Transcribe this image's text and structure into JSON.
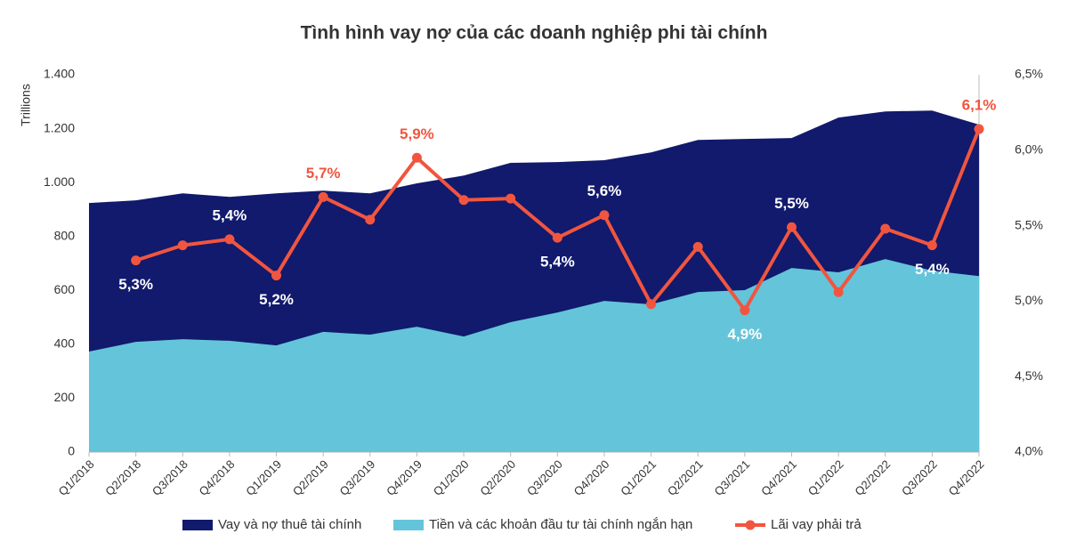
{
  "chart_data": {
    "type": "area_line",
    "title": "Tình hình vay nợ của các doanh nghiệp phi tài chính",
    "y_label": "Trillions",
    "categories": [
      "Q1/2018",
      "Q2/2018",
      "Q3/2018",
      "Q4/2018",
      "Q1/2019",
      "Q2/2019",
      "Q3/2019",
      "Q4/2019",
      "Q1/2020",
      "Q2/2020",
      "Q3/2020",
      "Q4/2020",
      "Q1/2021",
      "Q2/2021",
      "Q3/2021",
      "Q4/2021",
      "Q1/2022",
      "Q2/2022",
      "Q3/2022",
      "Q4/2022"
    ],
    "series": [
      {
        "name": "Vay và nợ thuê tài chính",
        "type": "area",
        "color": "#111a6c",
        "values": [
          924,
          934,
          960,
          947,
          960,
          970,
          960,
          997,
          1026,
          1073,
          1076,
          1083,
          1112,
          1158,
          1162,
          1165,
          1241,
          1264,
          1267,
          1215
        ]
      },
      {
        "name": "Tiền và các khoản đầu tư tài chính ngắn hạn",
        "type": "area",
        "color": "#64c4da",
        "values": [
          373,
          409,
          419,
          413,
          396,
          446,
          436,
          465,
          429,
          482,
          518,
          561,
          548,
          594,
          601,
          683,
          667,
          716,
          673,
          653
        ]
      },
      {
        "name": "Lãi vay phải trả",
        "type": "line",
        "axis": "y2",
        "color": "#f1553f",
        "values": [
          null,
          5.27,
          5.37,
          5.41,
          5.17,
          5.69,
          5.54,
          5.95,
          5.67,
          5.68,
          5.42,
          5.57,
          4.98,
          5.36,
          4.94,
          5.49,
          5.06,
          5.48,
          5.37,
          6.14
        ],
        "value_labels": [
          null,
          "5,3%",
          null,
          "5,4%",
          "5,2%",
          "5,7%",
          null,
          "5,9%",
          null,
          null,
          "5,4%",
          "5,6%",
          null,
          null,
          "4,9%",
          "5,5%",
          null,
          null,
          "5,4%",
          "6,1%"
        ]
      }
    ],
    "ylim": [
      0,
      1400
    ],
    "yticks": [
      0,
      200,
      400,
      600,
      800,
      {
        "value": 1000,
        "label": "1.000"
      },
      {
        "value": 1200,
        "label": "1.200"
      },
      {
        "value": 1400,
        "label": "1.400"
      }
    ],
    "y2lim": [
      4.0,
      6.5
    ],
    "y2ticks": [
      {
        "value": 4.0,
        "label": "4,0%"
      },
      {
        "value": 4.5,
        "label": "4,5%"
      },
      {
        "value": 5.0,
        "label": "5,0%"
      },
      {
        "value": 5.5,
        "label": "5,5%"
      },
      {
        "value": 6.0,
        "label": "6,0%"
      },
      {
        "value": 6.5,
        "label": "6,5%"
      }
    ],
    "grid": false,
    "legend": "bottom"
  }
}
